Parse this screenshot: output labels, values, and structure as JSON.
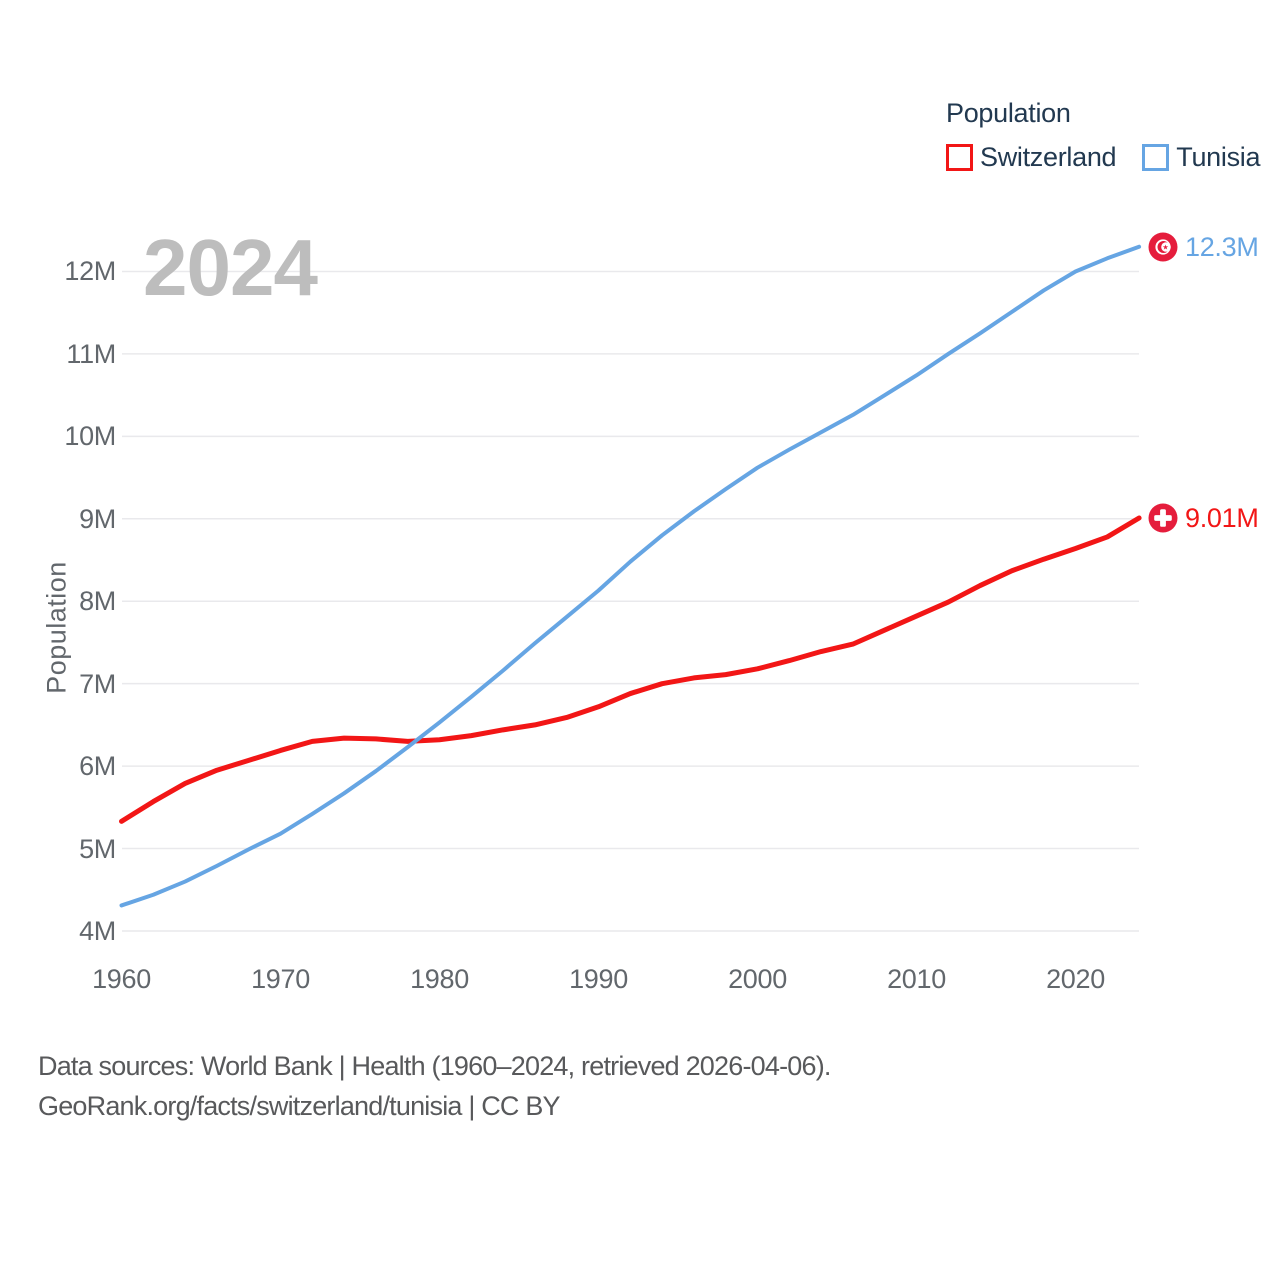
{
  "legend": {
    "title": "Population",
    "series": [
      {
        "label": "Switzerland",
        "color": "#f21616"
      },
      {
        "label": "Tunisia",
        "color": "#66a5e3"
      }
    ]
  },
  "watermark_year": "2024",
  "chart_data": {
    "type": "line",
    "title": "Population",
    "xlabel": "",
    "ylabel": "Population",
    "xlim": [
      1960,
      2024
    ],
    "ylim": [
      4000000,
      12550000
    ],
    "grid": "horizontal",
    "legend_position": "top-right",
    "units": "millions",
    "x": [
      1960,
      1962,
      1964,
      1966,
      1968,
      1970,
      1972,
      1974,
      1976,
      1978,
      1980,
      1982,
      1984,
      1986,
      1988,
      1990,
      1992,
      1994,
      1996,
      1998,
      2000,
      2002,
      2004,
      2006,
      2008,
      2010,
      2012,
      2014,
      2016,
      2018,
      2020,
      2022,
      2024
    ],
    "series": [
      {
        "name": "Switzerland",
        "color": "#f21616",
        "end_label": "9.01M",
        "end_value_millions": 9.01,
        "values": [
          5.33,
          5.57,
          5.79,
          5.95,
          6.07,
          6.19,
          6.3,
          6.34,
          6.33,
          6.3,
          6.32,
          6.37,
          6.44,
          6.5,
          6.59,
          6.72,
          6.88,
          7.0,
          7.07,
          7.11,
          7.18,
          7.28,
          7.39,
          7.48,
          7.65,
          7.82,
          7.99,
          8.19,
          8.37,
          8.51,
          8.64,
          8.78,
          9.01
        ]
      },
      {
        "name": "Tunisia",
        "color": "#66a5e3",
        "end_label": "12.3M",
        "end_value_millions": 12.3,
        "values": [
          4.31,
          4.44,
          4.6,
          4.79,
          4.99,
          5.18,
          5.42,
          5.67,
          5.94,
          6.23,
          6.53,
          6.84,
          7.16,
          7.49,
          7.81,
          8.13,
          8.48,
          8.8,
          9.09,
          9.36,
          9.62,
          9.84,
          10.05,
          10.26,
          10.5,
          10.74,
          11.0,
          11.25,
          11.51,
          11.77,
          12.0,
          12.16,
          12.3
        ]
      }
    ],
    "yticks": [
      {
        "value": 4,
        "label": "4M"
      },
      {
        "value": 5,
        "label": "5M"
      },
      {
        "value": 6,
        "label": "6M"
      },
      {
        "value": 7,
        "label": "7M"
      },
      {
        "value": 8,
        "label": "8M"
      },
      {
        "value": 9,
        "label": "9M"
      },
      {
        "value": 10,
        "label": "10M"
      },
      {
        "value": 11,
        "label": "11M"
      },
      {
        "value": 12,
        "label": "12M"
      }
    ],
    "xticks": [
      1960,
      1970,
      1980,
      1990,
      2000,
      2010,
      2020
    ],
    "marker_colors": {
      "flag_red": "#e51d3c",
      "flag_white": "#ffffff"
    }
  },
  "footer": {
    "line1": "Data sources: World Bank | Health (1960–2024, retrieved 2026-04-06).",
    "line2": "GeoRank.org/facts/switzerland/tunisia | CC BY"
  }
}
